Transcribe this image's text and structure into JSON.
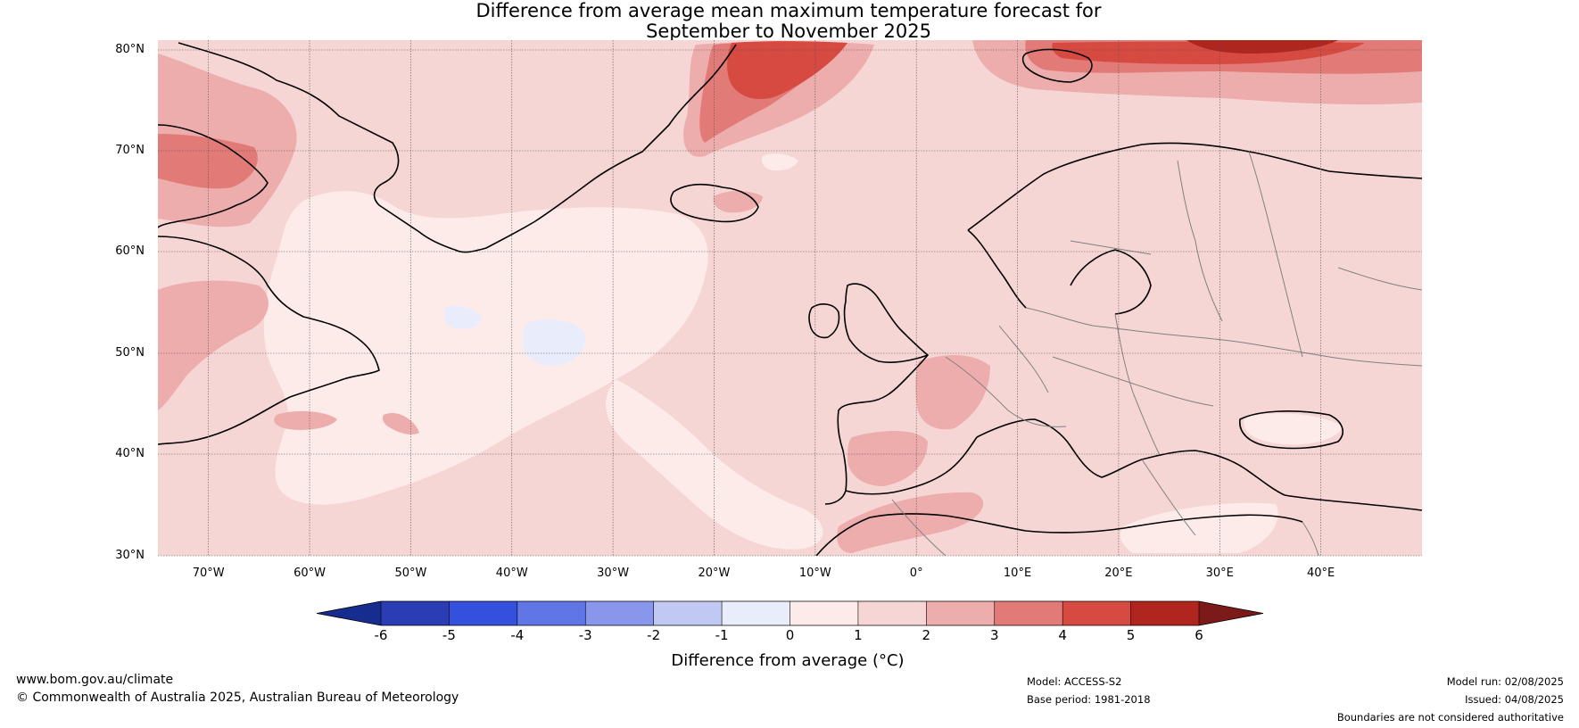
{
  "title": {
    "line1": "Difference from average mean maximum temperature forecast for",
    "line2": "September to November 2025"
  },
  "map": {
    "lat_labels": [
      "80°N",
      "70°N",
      "60°N",
      "50°N",
      "40°N",
      "30°N"
    ],
    "lon_labels": [
      "70°W",
      "60°W",
      "50°W",
      "40°W",
      "30°W",
      "20°W",
      "10°W",
      "0°",
      "10°E",
      "20°E",
      "30°E",
      "40°E"
    ],
    "extent": {
      "lon": [
        -75,
        50
      ],
      "lat": [
        30,
        81
      ]
    },
    "background_category": "1 to 2",
    "coastline_color": "#000000",
    "border_color": "#808080"
  },
  "colorbar": {
    "label": "Difference from average (°C)",
    "ticks": [
      "-6",
      "-5",
      "-4",
      "-3",
      "-2",
      "-1",
      "0",
      "1",
      "2",
      "3",
      "4",
      "5",
      "6"
    ],
    "colors": [
      "#172c8f",
      "#2b3db5",
      "#3550dc",
      "#6176e6",
      "#8896ec",
      "#c0c8f3",
      "#e8ecfb",
      "#fdebe9",
      "#f6d6d5",
      "#eeadad",
      "#e27b77",
      "#d74a41",
      "#b0261f",
      "#7c1a1a"
    ],
    "extend": "both"
  },
  "footer": {
    "website": "www.bom.gov.au/climate",
    "copyright": "© Commonwealth of Australia 2025, Australian Bureau of Meteorology",
    "model": "Model: ACCESS-S2",
    "base_period": "Base period: 1981-2018",
    "model_run": "Model run: 02/08/2025",
    "issued": "Issued: 04/08/2025",
    "disclaimer": "Boundaries are not considered authoritative"
  }
}
